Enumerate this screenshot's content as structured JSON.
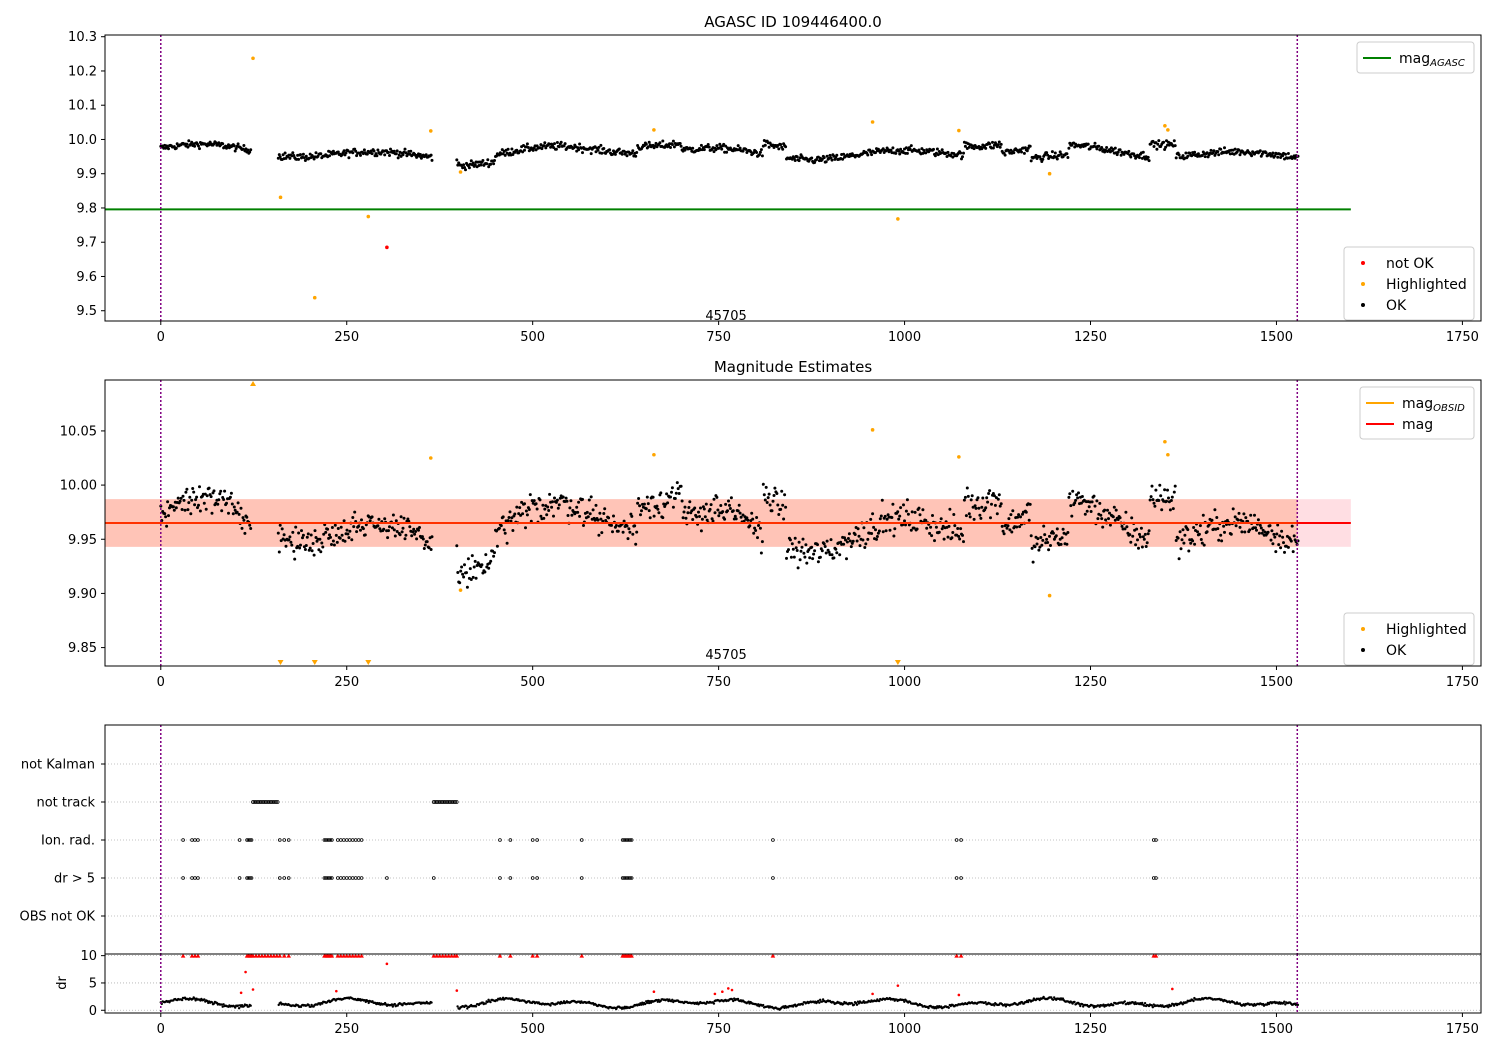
{
  "chart_data": [
    {
      "type": "scatter",
      "title": "AGASC ID 109446400.0",
      "xlim": [
        -75,
        1775
      ],
      "ylim": [
        9.47,
        10.305
      ],
      "xticks": [
        0,
        250,
        500,
        750,
        1000,
        1250,
        1500,
        1750
      ],
      "xtick_labels": [
        "0",
        "250",
        "500",
        "750",
        "1000",
        "1250",
        "1500",
        "1750"
      ],
      "yticks": [
        9.5,
        9.6,
        9.7,
        9.8,
        9.9,
        10.0,
        10.1,
        10.2,
        10.3
      ],
      "ytick_labels": [
        "9.5",
        "9.6",
        "9.7",
        "9.8",
        "9.9",
        "10.0",
        "10.1",
        "10.2",
        "10.3"
      ],
      "vlines": [
        0,
        1528
      ],
      "annotation": {
        "x": 760,
        "y": 9.485,
        "text": "45705"
      },
      "mag_agasc": {
        "value": 9.796,
        "x_range": [
          -75,
          1600
        ],
        "color": "#008000"
      },
      "legend_top": [
        {
          "label": "mag",
          "sub": "AGASC",
          "color": "#008000",
          "kind": "line"
        }
      ],
      "legend_bottom": [
        {
          "label": "not OK",
          "color": "#ff0000",
          "kind": "dot"
        },
        {
          "label": "Highlighted",
          "color": "#ffa500",
          "kind": "dot"
        },
        {
          "label": "OK",
          "color": "#000000",
          "kind": "dot"
        }
      ],
      "ok_segments": [
        {
          "x0": 0,
          "x1": 122,
          "base": 9.965,
          "noise": 0.018
        },
        {
          "x0": 158,
          "x1": 365,
          "base": 9.962,
          "noise": 0.02
        },
        {
          "x0": 398,
          "x1": 1530,
          "base": 9.962,
          "noise": 0.02
        }
      ],
      "highlighted": [
        {
          "x": 124,
          "y": 10.237
        },
        {
          "x": 161,
          "y": 9.831
        },
        {
          "x": 207,
          "y": 9.538
        },
        {
          "x": 279,
          "y": 9.775
        },
        {
          "x": 363,
          "y": 10.025
        },
        {
          "x": 403,
          "y": 9.905
        },
        {
          "x": 663,
          "y": 10.028
        },
        {
          "x": 957,
          "y": 10.051
        },
        {
          "x": 991,
          "y": 9.768
        },
        {
          "x": 1073,
          "y": 10.026
        },
        {
          "x": 1195,
          "y": 9.9
        },
        {
          "x": 1350,
          "y": 10.04
        },
        {
          "x": 1354,
          "y": 10.028
        }
      ],
      "not_ok": [
        {
          "x": 304,
          "y": 9.685
        }
      ]
    },
    {
      "type": "scatter",
      "title": "Magnitude Estimates",
      "xlim": [
        -75,
        1775
      ],
      "ylim": [
        9.833,
        10.097
      ],
      "xticks": [
        0,
        250,
        500,
        750,
        1000,
        1250,
        1500,
        1750
      ],
      "xtick_labels": [
        "0",
        "250",
        "500",
        "750",
        "1000",
        "1250",
        "1500",
        "1750"
      ],
      "yticks": [
        9.85,
        9.9,
        9.95,
        10.0,
        10.05
      ],
      "ytick_labels": [
        "9.85",
        "9.90",
        "9.95",
        "10.00",
        "10.05"
      ],
      "vlines": [
        0,
        1528
      ],
      "annotation": {
        "x": 760,
        "y": 9.843,
        "text": "45705"
      },
      "mag": {
        "value": 9.965,
        "x_range": [
          -75,
          1600
        ],
        "color": "#ff0000"
      },
      "band_pink": {
        "x_range": [
          -75,
          1600
        ],
        "y_range": [
          9.943,
          9.987
        ],
        "color": "#ffb6c1",
        "opacity": 0.45
      },
      "band_orange": {
        "x_range": [
          -75,
          1528
        ],
        "y_range": [
          9.943,
          9.987
        ],
        "color": "#ffa07a",
        "opacity": 0.42
      },
      "mag_obsid": {
        "value": 9.965,
        "x_range": [
          -75,
          1528
        ],
        "color": "#ffa500"
      },
      "legend_top": [
        {
          "label": "mag",
          "sub": "OBSID",
          "color": "#ffa500",
          "kind": "line"
        },
        {
          "label": "mag",
          "sub": "",
          "color": "#ff0000",
          "kind": "line"
        }
      ],
      "legend_bottom": [
        {
          "label": "Highlighted",
          "color": "#ffa500",
          "kind": "dot"
        },
        {
          "label": "OK",
          "color": "#000000",
          "kind": "dot"
        }
      ],
      "ok_segments": [
        {
          "x0": 0,
          "x1": 122,
          "base": 9.963,
          "noise": 0.022
        },
        {
          "x0": 158,
          "x1": 365,
          "base": 9.962,
          "noise": 0.022
        },
        {
          "x0": 398,
          "x1": 1530,
          "base": 9.962,
          "noise": 0.025
        }
      ],
      "highlighted": [
        {
          "x": 363,
          "y": 10.025
        },
        {
          "x": 403,
          "y": 9.903
        },
        {
          "x": 663,
          "y": 10.028
        },
        {
          "x": 957,
          "y": 10.051
        },
        {
          "x": 1073,
          "y": 10.026
        },
        {
          "x": 1195,
          "y": 9.898
        },
        {
          "x": 1350,
          "y": 10.04
        },
        {
          "x": 1354,
          "y": 10.028
        }
      ],
      "clipped_up": [
        {
          "x": 124
        }
      ],
      "clipped_down": [
        {
          "x": 161
        },
        {
          "x": 207
        },
        {
          "x": 279
        },
        {
          "x": 991
        }
      ]
    },
    {
      "type": "scatter",
      "title": "",
      "xlim": [
        -75,
        1775
      ],
      "categories": [
        "not Kalman",
        "not track",
        "Ion. rad.",
        "dr > 5",
        "OBS not OK"
      ],
      "not_track_ranges": [
        [
          124,
          158
        ],
        [
          367,
          398
        ]
      ],
      "ion_rad_x": [
        30,
        42,
        46,
        50,
        106,
        116,
        118,
        120,
        122,
        160,
        166,
        172,
        220,
        222,
        224,
        226,
        228,
        230,
        238,
        242,
        246,
        250,
        254,
        258,
        262,
        266,
        270,
        456,
        470,
        500,
        506,
        566,
        621,
        623,
        625,
        627,
        629,
        631,
        633,
        823,
        1070,
        1076,
        1335,
        1338
      ],
      "dr_gt5_x": [
        30,
        42,
        46,
        50,
        106,
        116,
        118,
        120,
        122,
        160,
        166,
        172,
        220,
        222,
        224,
        226,
        228,
        230,
        238,
        242,
        246,
        250,
        254,
        258,
        262,
        266,
        270,
        304,
        367,
        456,
        470,
        500,
        506,
        566,
        621,
        623,
        625,
        627,
        629,
        631,
        633,
        823,
        1070,
        1076,
        1335,
        1338
      ],
      "vlines": [
        0,
        1528
      ]
    },
    {
      "type": "scatter",
      "title": "",
      "ylabel": "dr",
      "xlim": [
        -75,
        1775
      ],
      "ylim": [
        -0.5,
        10.3
      ],
      "yticks": [
        0,
        5,
        10
      ],
      "ytick_labels": [
        "0",
        "5",
        "10"
      ],
      "xticks": [
        0,
        250,
        500,
        750,
        1000,
        1250,
        1500,
        1750
      ],
      "xtick_labels": [
        "0",
        "250",
        "500",
        "750",
        "1000",
        "1250",
        "1500",
        "1750"
      ],
      "vlines": [
        0,
        1528
      ],
      "dr_trend": {
        "x0": 0,
        "x1": 1530,
        "base": 1.3,
        "amp": 0.9
      },
      "dr_red_low": [
        {
          "x": 108,
          "y": 3.2
        },
        {
          "x": 114,
          "y": 7.0
        },
        {
          "x": 124,
          "y": 3.8
        },
        {
          "x": 236,
          "y": 3.5
        },
        {
          "x": 304,
          "y": 8.5
        },
        {
          "x": 398,
          "y": 3.6
        },
        {
          "x": 663,
          "y": 3.4
        },
        {
          "x": 745,
          "y": 3.0
        },
        {
          "x": 755,
          "y": 3.4
        },
        {
          "x": 763,
          "y": 4.0
        },
        {
          "x": 768,
          "y": 3.7
        },
        {
          "x": 957,
          "y": 3.0
        },
        {
          "x": 991,
          "y": 4.5
        },
        {
          "x": 1073,
          "y": 2.8
        },
        {
          "x": 1360,
          "y": 3.9
        }
      ],
      "dr_clipped_x": [
        30,
        42,
        46,
        50,
        116,
        118,
        120,
        122,
        124,
        128,
        132,
        136,
        140,
        144,
        148,
        152,
        156,
        160,
        166,
        172,
        220,
        222,
        224,
        226,
        228,
        230,
        238,
        242,
        246,
        250,
        254,
        258,
        262,
        266,
        270,
        367,
        371,
        375,
        379,
        383,
        387,
        391,
        395,
        398,
        456,
        470,
        500,
        506,
        566,
        621,
        623,
        625,
        627,
        629,
        631,
        633,
        823,
        1070,
        1076,
        1335,
        1338
      ]
    }
  ]
}
